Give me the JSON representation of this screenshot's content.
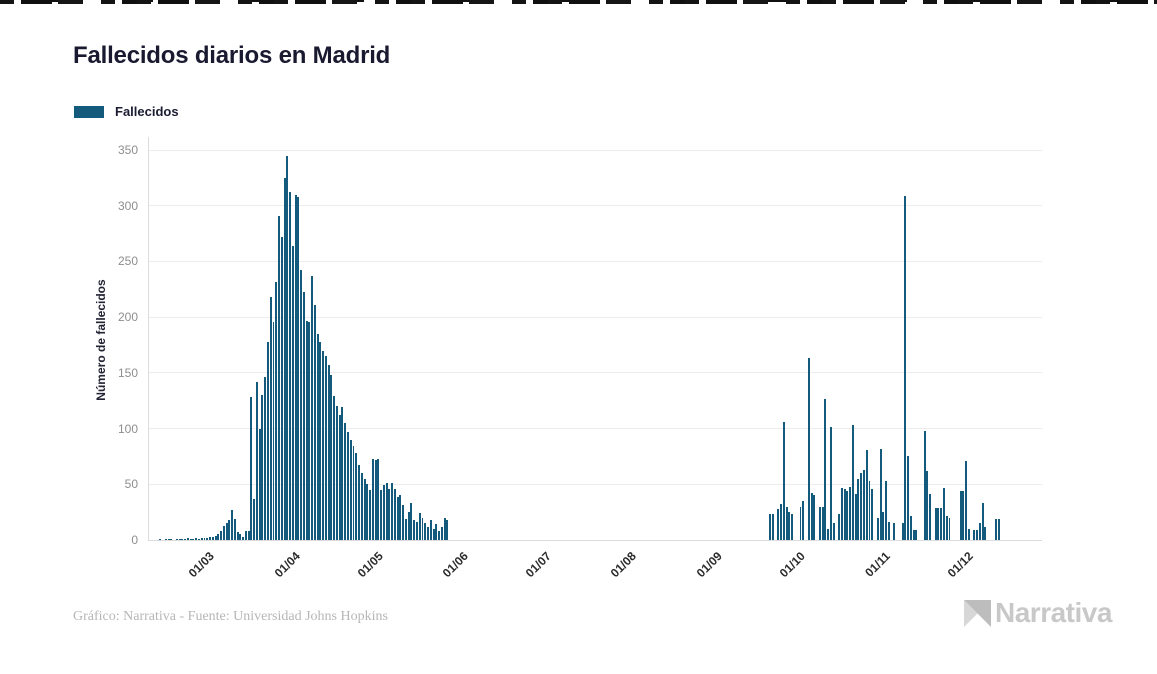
{
  "header": {
    "title": "Fallecidos diarios en Madrid"
  },
  "legend": {
    "label": "Fallecidos",
    "swatch_color": "#135a7d"
  },
  "footer": {
    "source_note": "Gráfico: Narrativa - Fuente: Universidad Johns Hopkins"
  },
  "branding": {
    "logo_text": "Narrativa"
  },
  "colors": {
    "bar": "#135a7d",
    "grid": "#ececec",
    "axis": "#dcdcdc",
    "y_tick_text": "#8e8e8e",
    "x_tick_text": "#2b2b2b",
    "title_text": "#191930",
    "footer_text": "#b6b6b6",
    "logo_text": "#c8c8c8"
  },
  "chart_data": {
    "type": "bar",
    "title": "Fallecidos diarios en Madrid",
    "series_name": "Fallecidos",
    "xlabel": "",
    "ylabel": "Número de fallecidos",
    "ylim": [
      0,
      350
    ],
    "y_ticks": [
      0,
      50,
      100,
      150,
      200,
      250,
      300,
      350
    ],
    "grid": true,
    "legend_position": "top-left",
    "bar_color": "#135a7d",
    "cadence": "daily",
    "x_axis_domain": [
      "2020-02-09",
      "2020-12-28"
    ],
    "x_ticks": [
      {
        "date": "2020-03-01",
        "label": "01/03"
      },
      {
        "date": "2020-04-01",
        "label": "01/04"
      },
      {
        "date": "2020-05-01",
        "label": "01/05"
      },
      {
        "date": "2020-06-01",
        "label": "01/06"
      },
      {
        "date": "2020-07-01",
        "label": "01/07"
      },
      {
        "date": "2020-08-01",
        "label": "01/08"
      },
      {
        "date": "2020-09-01",
        "label": "01/09"
      },
      {
        "date": "2020-10-01",
        "label": "01/10"
      },
      {
        "date": "2020-11-01",
        "label": "01/11"
      },
      {
        "date": "2020-12-01",
        "label": "01/12"
      }
    ],
    "start_date": "2020-02-13",
    "values": [
      1,
      0,
      1,
      1,
      1,
      0,
      1,
      1,
      1,
      1,
      2,
      1,
      1,
      2,
      1,
      2,
      2,
      2,
      3,
      3,
      4,
      5,
      8,
      13,
      15,
      18,
      27,
      19,
      7,
      5,
      3,
      8,
      8,
      128,
      37,
      142,
      100,
      130,
      146,
      178,
      218,
      196,
      232,
      291,
      272,
      325,
      345,
      312,
      264,
      310,
      308,
      242,
      223,
      197,
      196,
      237,
      211,
      185,
      178,
      170,
      165,
      157,
      148,
      129,
      120,
      112,
      119,
      105,
      97,
      90,
      84,
      78,
      67,
      60,
      55,
      50,
      45,
      73,
      72,
      73,
      45,
      49,
      51,
      46,
      51,
      46,
      39,
      40,
      31,
      19,
      25,
      33,
      18,
      16,
      24,
      20,
      15,
      12,
      18,
      10,
      14,
      8,
      12,
      20,
      18,
      0,
      0,
      0,
      0,
      0,
      0,
      0,
      0,
      0,
      0,
      0,
      0,
      0,
      0,
      0,
      0,
      0,
      0,
      0,
      0,
      0,
      0,
      0,
      0,
      0,
      0,
      0,
      0,
      0,
      0,
      0,
      0,
      0,
      0,
      0,
      0,
      0,
      0,
      0,
      0,
      0,
      0,
      0,
      0,
      0,
      0,
      0,
      0,
      0,
      0,
      0,
      0,
      0,
      0,
      0,
      0,
      0,
      0,
      0,
      0,
      0,
      0,
      0,
      0,
      0,
      0,
      0,
      0,
      0,
      0,
      0,
      0,
      0,
      0,
      0,
      0,
      0,
      0,
      0,
      0,
      0,
      0,
      0,
      0,
      0,
      0,
      0,
      0,
      0,
      0,
      0,
      0,
      0,
      0,
      0,
      0,
      0,
      0,
      0,
      0,
      0,
      0,
      0,
      0,
      0,
      0,
      0,
      0,
      0,
      0,
      0,
      0,
      0,
      0,
      0,
      0,
      23,
      23,
      0,
      28,
      32,
      106,
      30,
      25,
      23,
      0,
      0,
      30,
      35,
      0,
      163,
      42,
      40,
      0,
      30,
      30,
      127,
      10,
      101,
      15,
      0,
      23,
      47,
      46,
      44,
      48,
      103,
      41,
      55,
      60,
      63,
      81,
      53,
      46,
      0,
      20,
      82,
      25,
      53,
      16,
      0,
      15,
      0,
      0,
      15,
      309,
      75,
      22,
      9,
      9,
      0,
      0,
      98,
      62,
      41,
      0,
      29,
      29,
      29,
      47,
      22,
      20,
      0,
      0,
      0,
      44,
      44,
      71,
      10,
      0,
      9,
      9,
      15,
      33,
      12,
      0,
      0,
      0,
      19,
      19,
      0,
      0,
      0
    ]
  }
}
